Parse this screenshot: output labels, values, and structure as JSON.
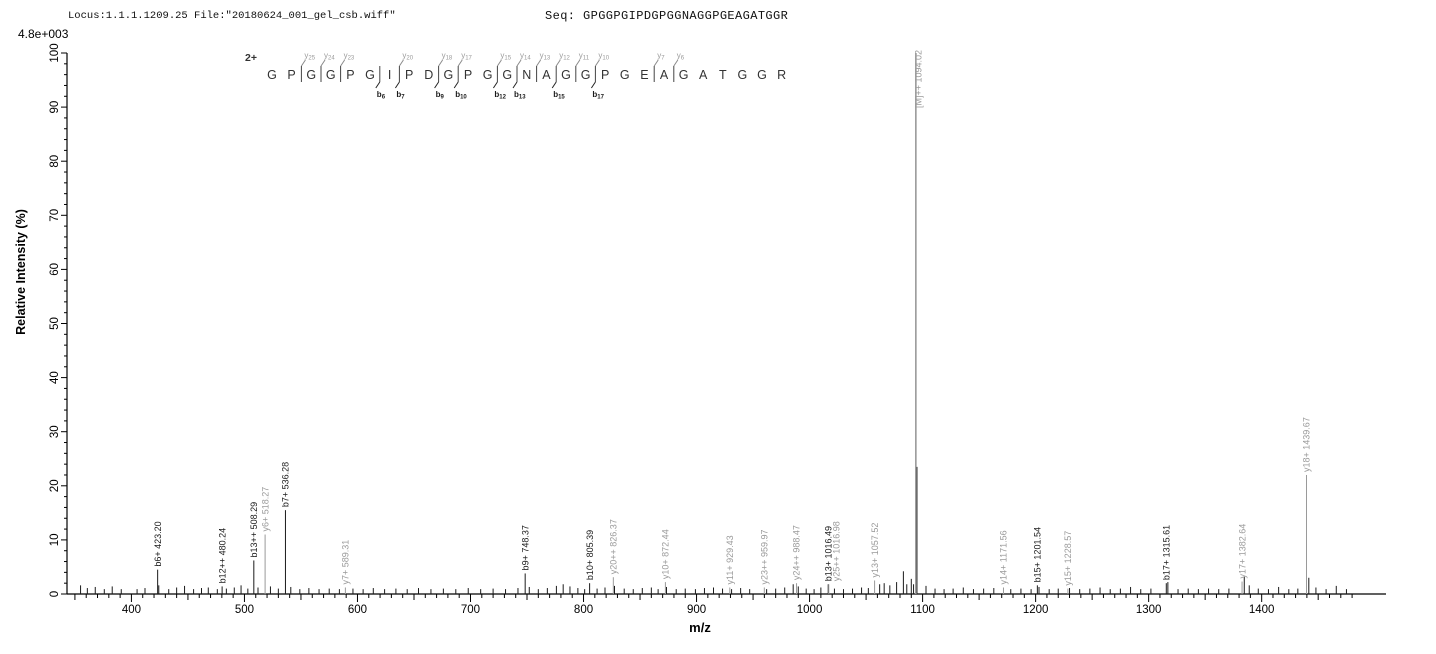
{
  "header": {
    "locus_file": "Locus:1.1.1.1209.25 File:\"20180624_001_gel_csb.wiff\"",
    "sequence_line": "Seq: GPGGPGIPDGPGGNAGGPGEAGATGGR"
  },
  "chart_data": {
    "type": "bar",
    "subtype": "ms2-fragmentation-spectrum",
    "title": "",
    "xlabel": "m/z",
    "ylabel": "Relative  Intensity  (%)",
    "intensity_scale_label": "4.8e+003",
    "xlim": [
      343,
      1510
    ],
    "ylim": [
      0,
      100
    ],
    "grid": false,
    "x_tick_labels": [
      400,
      500,
      600,
      700,
      800,
      900,
      1000,
      1100,
      1200,
      1300,
      1400
    ],
    "x_minor_step": 10,
    "y_tick_labels": [
      0,
      10,
      20,
      30,
      40,
      50,
      60,
      70,
      80,
      90,
      100
    ],
    "y_minor_step": 2,
    "precursor": {
      "charge_label": "2+",
      "label": "[M]++ 1094.02",
      "mz": 1094.02
    },
    "peptide": {
      "sequence": "GPGGPGIPDGPGGNAGGPGEAGATGGR",
      "fragments": [
        {
          "after": 2,
          "y": "y25"
        },
        {
          "after": 3,
          "y": "y24"
        },
        {
          "after": 4,
          "y": "y23"
        },
        {
          "after": 6,
          "b": "b6"
        },
        {
          "after": 7,
          "y": "y20",
          "b": "b7"
        },
        {
          "after": 9,
          "y": "y18",
          "b": "b9"
        },
        {
          "after": 10,
          "y": "y17",
          "b": "b10"
        },
        {
          "after": 12,
          "y": "y15",
          "b": "b12"
        },
        {
          "after": 13,
          "y": "y14",
          "b": "b13"
        },
        {
          "after": 14,
          "y": "y13"
        },
        {
          "after": 15,
          "y": "y12",
          "b": "b15"
        },
        {
          "after": 16,
          "y": "y11"
        },
        {
          "after": 17,
          "y": "y10",
          "b": "b17"
        },
        {
          "after": 20,
          "y": "y7"
        },
        {
          "after": 21,
          "y": "y6"
        }
      ]
    },
    "peaks": {
      "labeled": [
        {
          "mz": 423.2,
          "intensity": 4.5,
          "label": "b6+ 423.20",
          "ion": "b"
        },
        {
          "mz": 480.24,
          "intensity": 1.4,
          "label": "b12++ 480.24",
          "ion": "b"
        },
        {
          "mz": 508.29,
          "intensity": 6.2,
          "label": "b13++ 508.29",
          "ion": "b"
        },
        {
          "mz": 518.27,
          "intensity": 11.0,
          "label": "y6+ 518.27",
          "ion": "y"
        },
        {
          "mz": 536.28,
          "intensity": 15.5,
          "label": "b7+ 536.28",
          "ion": "b"
        },
        {
          "mz": 589.31,
          "intensity": 1.2,
          "label": "y7+ 589.31",
          "ion": "y"
        },
        {
          "mz": 748.37,
          "intensity": 3.8,
          "label": "b9+ 748.37",
          "ion": "b"
        },
        {
          "mz": 805.39,
          "intensity": 2.0,
          "label": "b10+ 805.39",
          "ion": "b"
        },
        {
          "mz": 826.37,
          "intensity": 3.1,
          "label": "y20++ 826.37",
          "ion": "y"
        },
        {
          "mz": 872.44,
          "intensity": 2.2,
          "label": "y10+ 872.44",
          "ion": "y"
        },
        {
          "mz": 929.43,
          "intensity": 1.2,
          "label": "y11+ 929.43",
          "ion": "y"
        },
        {
          "mz": 959.97,
          "intensity": 1.2,
          "label": "y23++ 959.97",
          "ion": "y"
        },
        {
          "mz": 988.47,
          "intensity": 2.0,
          "label": "y24++ 988.47",
          "ion": "y"
        },
        {
          "mz": 1016.49,
          "intensity": 1.8,
          "label": "b13+ 1016.49",
          "ion": "b"
        },
        {
          "mz": 1016.98,
          "intensity": 1.8,
          "label": "y25++ 1016.98",
          "ion": "y"
        },
        {
          "mz": 1057.52,
          "intensity": 2.5,
          "label": "y13+ 1057.52",
          "ion": "y"
        },
        {
          "mz": 1094.02,
          "intensity": 100,
          "label": "[M]++ 1094.02",
          "ion": "precursor"
        },
        {
          "mz": 1171.56,
          "intensity": 1.2,
          "label": "y14+ 1171.56",
          "ion": "y"
        },
        {
          "mz": 1201.54,
          "intensity": 1.6,
          "label": "b15+ 1201.54",
          "ion": "b"
        },
        {
          "mz": 1228.57,
          "intensity": 1.0,
          "label": "y15+ 1228.57",
          "ion": "y"
        },
        {
          "mz": 1315.61,
          "intensity": 2.0,
          "label": "b17+ 1315.61",
          "ion": "b"
        },
        {
          "mz": 1382.64,
          "intensity": 2.3,
          "label": "y17+ 1382.64",
          "ion": "y"
        },
        {
          "mz": 1439.67,
          "intensity": 22.0,
          "label": "y18+ 1439.67",
          "ion": "y"
        }
      ],
      "noise": [
        [
          355,
          1.6
        ],
        [
          361,
          1.1
        ],
        [
          368,
          1.3
        ],
        [
          376,
          0.9
        ],
        [
          383,
          1.4
        ],
        [
          391,
          0.9
        ],
        [
          405,
          0.9
        ],
        [
          412,
          1.1
        ],
        [
          424.2,
          1.6
        ],
        [
          433,
          0.9
        ],
        [
          440,
          1.2
        ],
        [
          447,
          1.5
        ],
        [
          455,
          0.9
        ],
        [
          462,
          1.1
        ],
        [
          468,
          1.2
        ],
        [
          476,
          0.9
        ],
        [
          484,
          1.0
        ],
        [
          491,
          1.2
        ],
        [
          497,
          1.6
        ],
        [
          503,
          1.0
        ],
        [
          512,
          1.2
        ],
        [
          523,
          1.4
        ],
        [
          530,
          1.0
        ],
        [
          541,
          1.3
        ],
        [
          549,
          0.9
        ],
        [
          557,
          1.1
        ],
        [
          566,
          0.9
        ],
        [
          575,
          1.0
        ],
        [
          584,
          0.9
        ],
        [
          596,
          1.0
        ],
        [
          605,
          0.9
        ],
        [
          614,
          1.1
        ],
        [
          624,
          0.9
        ],
        [
          634,
          1.0
        ],
        [
          644,
          0.9
        ],
        [
          654,
          1.1
        ],
        [
          665,
          0.9
        ],
        [
          676,
          1.0
        ],
        [
          687,
          0.9
        ],
        [
          698,
          1.1
        ],
        [
          709,
          0.9
        ],
        [
          720,
          1.0
        ],
        [
          731,
          0.9
        ],
        [
          742,
          1.1
        ],
        [
          752,
          1.3
        ],
        [
          760,
          0.9
        ],
        [
          768,
          1.1
        ],
        [
          776,
          1.5
        ],
        [
          782,
          1.8
        ],
        [
          788,
          1.4
        ],
        [
          795,
          1.1
        ],
        [
          801,
          0.9
        ],
        [
          812,
          1.0
        ],
        [
          819,
          1.2
        ],
        [
          827.4,
          1.5
        ],
        [
          836,
          1.0
        ],
        [
          844,
          0.9
        ],
        [
          852,
          1.1
        ],
        [
          860,
          1.2
        ],
        [
          866,
          0.9
        ],
        [
          873.4,
          1.3
        ],
        [
          882,
          0.9
        ],
        [
          890,
          1.0
        ],
        [
          899,
          0.9
        ],
        [
          907,
          1.1
        ],
        [
          915,
          1.2
        ],
        [
          923,
          1.0
        ],
        [
          931,
          0.9
        ],
        [
          939,
          1.1
        ],
        [
          947,
          0.9
        ],
        [
          962,
          0.9
        ],
        [
          970,
          1.0
        ],
        [
          978,
          1.2
        ],
        [
          985.5,
          1.8
        ],
        [
          990,
          1.4
        ],
        [
          997,
          1.0
        ],
        [
          1004,
          0.9
        ],
        [
          1010,
          1.2
        ],
        [
          1022,
          1.0
        ],
        [
          1030,
          0.9
        ],
        [
          1038,
          1.0
        ],
        [
          1046,
          1.2
        ],
        [
          1052,
          1.1
        ],
        [
          1062,
          1.8
        ],
        [
          1066,
          2.0
        ],
        [
          1071,
          1.6
        ],
        [
          1077,
          2.2
        ],
        [
          1083,
          4.2
        ],
        [
          1086,
          1.8
        ],
        [
          1090,
          2.8
        ],
        [
          1092,
          1.8
        ],
        [
          1095,
          23.5
        ],
        [
          1103,
          1.5
        ],
        [
          1111,
          1.0
        ],
        [
          1119,
          0.9
        ],
        [
          1127,
          1.0
        ],
        [
          1136,
          1.2
        ],
        [
          1145,
          0.9
        ],
        [
          1154,
          1.0
        ],
        [
          1163,
          1.1
        ],
        [
          1178,
          0.9
        ],
        [
          1187,
          1.0
        ],
        [
          1196,
          0.9
        ],
        [
          1203,
          1.3
        ],
        [
          1212,
          0.9
        ],
        [
          1220,
          1.0
        ],
        [
          1230,
          1.1
        ],
        [
          1239,
          0.9
        ],
        [
          1248,
          1.0
        ],
        [
          1257,
          1.2
        ],
        [
          1266,
          0.9
        ],
        [
          1275,
          1.0
        ],
        [
          1284,
          1.3
        ],
        [
          1293,
          0.9
        ],
        [
          1302,
          1.0
        ],
        [
          1317,
          2.2
        ],
        [
          1326,
          0.9
        ],
        [
          1335,
          1.0
        ],
        [
          1344,
          0.9
        ],
        [
          1353,
          1.0
        ],
        [
          1362,
          0.9
        ],
        [
          1371,
          1.0
        ],
        [
          1384.6,
          3.2
        ],
        [
          1389,
          1.6
        ],
        [
          1397,
          1.0
        ],
        [
          1406,
          0.9
        ],
        [
          1415,
          1.3
        ],
        [
          1424,
          0.9
        ],
        [
          1432,
          1.0
        ],
        [
          1441.7,
          3.0
        ],
        [
          1448,
          1.2
        ],
        [
          1457,
          0.9
        ],
        [
          1466,
          1.5
        ],
        [
          1475,
          0.9
        ]
      ]
    },
    "colors": {
      "b": "#1a1a1a",
      "y": "#9a9a9a",
      "precursor": "#9a9a9a",
      "noise": "#1a1a1a",
      "axis": "#000000",
      "sequence_text": "#333333"
    }
  }
}
